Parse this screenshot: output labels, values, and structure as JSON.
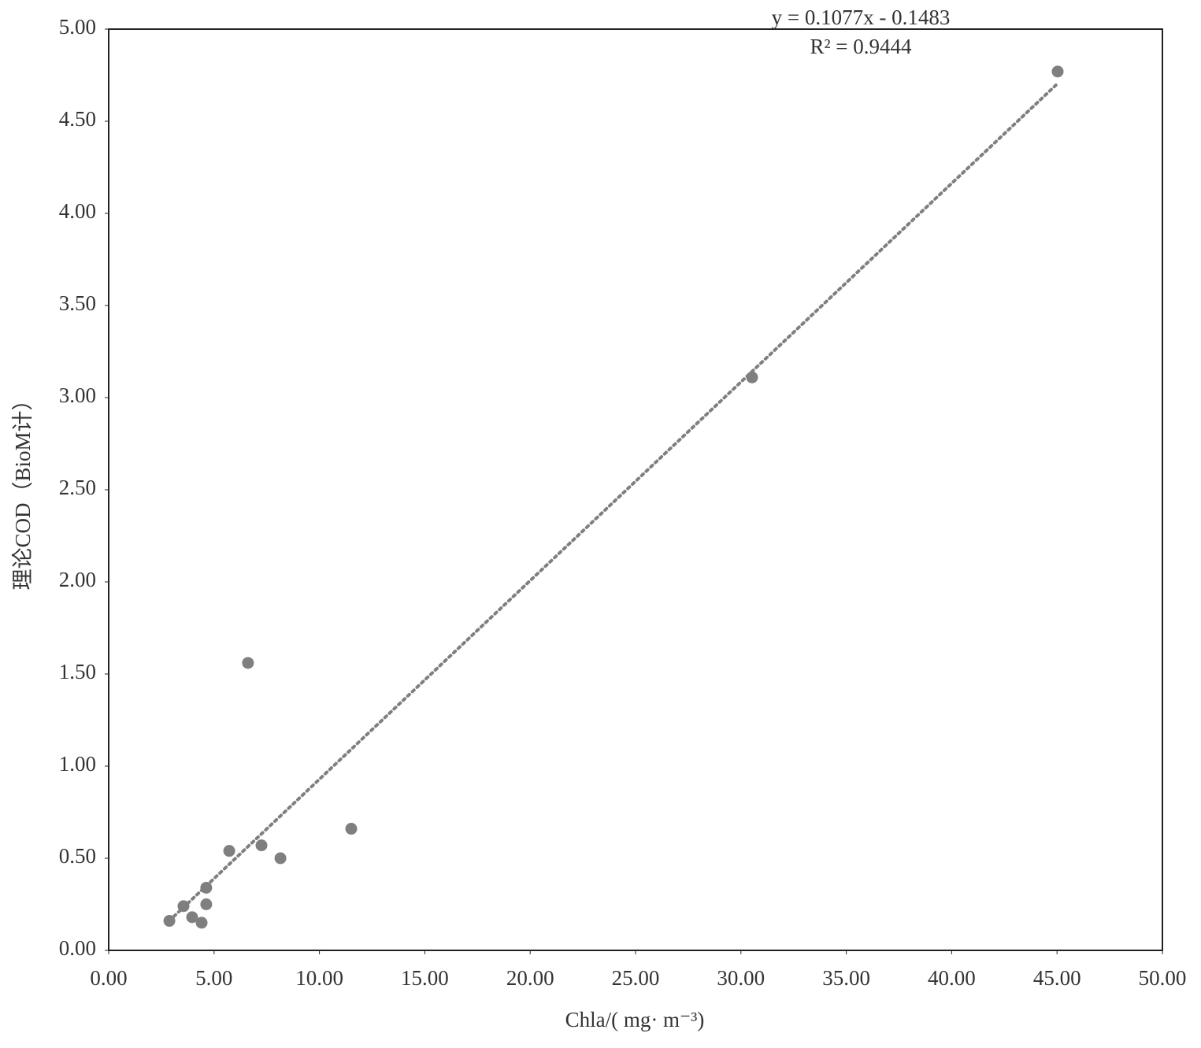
{
  "chart_data": {
    "type": "scatter",
    "x_label": "Chla/( mg· m⁻³)",
    "y_label": "理论COD（BioM计）",
    "annotations": [
      "y = 0.1077x - 0.1483",
      "R² = 0.9444"
    ],
    "trendline": "linear",
    "series": [
      {
        "name": "COD",
        "color": "#7f7f7f",
        "x": [
          2.88,
          3.55,
          3.96,
          4.41,
          4.63,
          4.63,
          5.72,
          6.61,
          7.25,
          8.15,
          11.51,
          30.53,
          45.03
        ],
        "values": [
          0.16,
          0.24,
          0.18,
          0.15,
          0.25,
          0.34,
          0.54,
          1.56,
          0.57,
          0.5,
          0.66,
          3.11,
          4.77
        ]
      }
    ],
    "xlim": [
      0,
      50
    ],
    "xticks": [
      {
        "value": 0,
        "label": "0.00"
      },
      {
        "value": 5,
        "label": "5.00"
      },
      {
        "value": 10,
        "label": "10.00"
      },
      {
        "value": 15,
        "label": "15.00"
      },
      {
        "value": 20,
        "label": "20.00"
      },
      {
        "value": 25,
        "label": "25.00"
      },
      {
        "value": 30,
        "label": "30.00"
      },
      {
        "value": 35,
        "label": "35.00"
      },
      {
        "value": 40,
        "label": "40.00"
      },
      {
        "value": 45,
        "label": "45.00"
      },
      {
        "value": 50,
        "label": "50.00"
      }
    ],
    "ylim": [
      0,
      5
    ],
    "yticks": [
      {
        "value": 0,
        "label": "0.00"
      },
      {
        "value": 0.5,
        "label": "0.50"
      },
      {
        "value": 1,
        "label": "1.00"
      },
      {
        "value": 1.5,
        "label": "1.50"
      },
      {
        "value": 2,
        "label": "2.00"
      },
      {
        "value": 2.5,
        "label": "2.50"
      },
      {
        "value": 3,
        "label": "3.00"
      },
      {
        "value": 3.5,
        "label": "3.50"
      },
      {
        "value": 4,
        "label": "4.00"
      },
      {
        "value": 4.5,
        "label": "4.50"
      },
      {
        "value": 5,
        "label": "5.00"
      }
    ],
    "grid": false
  }
}
